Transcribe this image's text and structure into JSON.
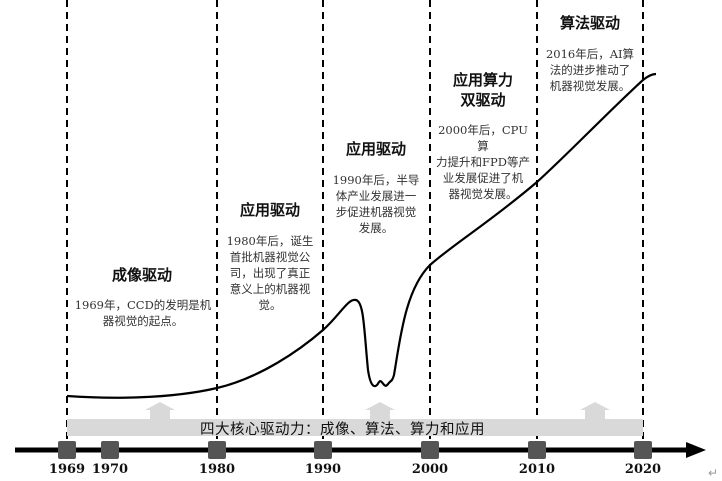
{
  "timeline": {
    "years": [
      "1969",
      "1970",
      "1980",
      "1990",
      "2000",
      "2010",
      "2020"
    ],
    "band_label": "四大核心驱动力：成像、算法、算力和应用",
    "axis_color": "#000000",
    "marker_color": "#555555",
    "band_color": "#d9d9d9"
  },
  "stages": [
    {
      "title": "成像驱动",
      "desc": "1969年，CCD的发明是机\n器视觉的起点。"
    },
    {
      "title": "应用驱动",
      "desc": "1980年后，诞生\n首批机器视觉公\n司，出现了真正\n意义上的机器视\n觉。"
    },
    {
      "title": "应用驱动",
      "desc": "1990年后，半导\n体产业发展进一\n步促进机器视觉\n发展。"
    },
    {
      "title": "应用算力\n双驱动",
      "desc": "2000年后，CPU算\n力提升和FPD等产\n业发展促进了机\n器视觉发展。"
    },
    {
      "title": "算法驱动",
      "desc": "2016年后，AI算\n法的进步推动了\n机器视觉发展。"
    }
  ],
  "return_mark": "↵"
}
